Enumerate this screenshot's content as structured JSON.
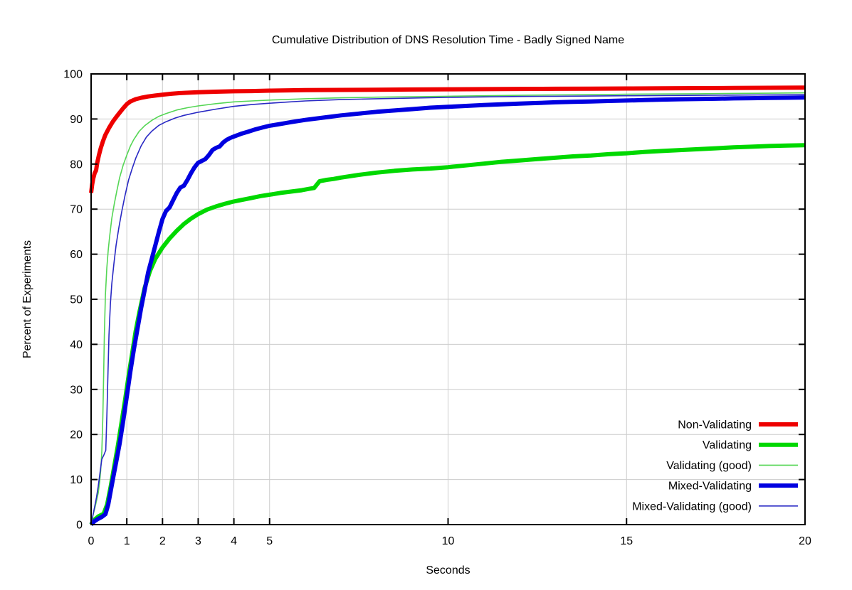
{
  "chart_data": {
    "type": "line",
    "title": "Cumulative Distribution of DNS Resolution Time - Badly Signed Name",
    "xlabel": "Seconds",
    "ylabel": "Percent of Experiments",
    "xlim": [
      0,
      20
    ],
    "ylim": [
      0,
      100
    ],
    "xticks": [
      0,
      1,
      2,
      3,
      4,
      5,
      10,
      15,
      20
    ],
    "yticks": [
      0,
      10,
      20,
      30,
      40,
      50,
      60,
      70,
      80,
      90,
      100
    ],
    "grid": true,
    "grid_color": "#cccccc",
    "frame_color": "#000000",
    "background": "#ffffff",
    "legend_position": "inside-bottom-right",
    "series": [
      {
        "name": "Validating",
        "color": "#00d800",
        "width": 6,
        "points": [
          [
            0,
            0
          ],
          [
            0.08,
            1
          ],
          [
            0.2,
            1.8
          ],
          [
            0.35,
            2.4
          ],
          [
            0.45,
            4.5
          ],
          [
            0.55,
            8.5
          ],
          [
            0.65,
            13
          ],
          [
            0.75,
            17.5
          ],
          [
            0.85,
            22.5
          ],
          [
            0.95,
            27.5
          ],
          [
            1.05,
            33
          ],
          [
            1.15,
            38
          ],
          [
            1.25,
            43
          ],
          [
            1.35,
            47
          ],
          [
            1.5,
            52.5
          ],
          [
            1.65,
            56.3
          ],
          [
            1.8,
            59
          ],
          [
            2,
            61.5
          ],
          [
            2.2,
            63.5
          ],
          [
            2.4,
            65.2
          ],
          [
            2.6,
            66.7
          ],
          [
            2.8,
            67.9
          ],
          [
            3,
            68.9
          ],
          [
            3.25,
            69.9
          ],
          [
            3.5,
            70.6
          ],
          [
            3.75,
            71.2
          ],
          [
            4,
            71.7
          ],
          [
            4.25,
            72.1
          ],
          [
            4.5,
            72.5
          ],
          [
            4.75,
            72.9
          ],
          [
            5,
            73.2
          ],
          [
            5.3,
            73.6
          ],
          [
            5.6,
            73.9
          ],
          [
            5.9,
            74.2
          ],
          [
            6.1,
            74.5
          ],
          [
            6.25,
            74.7
          ],
          [
            6.4,
            76.2
          ],
          [
            6.6,
            76.5
          ],
          [
            6.8,
            76.7
          ],
          [
            7,
            77
          ],
          [
            7.5,
            77.6
          ],
          [
            8,
            78.1
          ],
          [
            8.5,
            78.5
          ],
          [
            9,
            78.8
          ],
          [
            9.5,
            79
          ],
          [
            10,
            79.3
          ],
          [
            10.5,
            79.7
          ],
          [
            11,
            80.1
          ],
          [
            11.5,
            80.5
          ],
          [
            12,
            80.8
          ],
          [
            12.5,
            81.1
          ],
          [
            13,
            81.4
          ],
          [
            13.5,
            81.7
          ],
          [
            14,
            81.9
          ],
          [
            14.5,
            82.2
          ],
          [
            15,
            82.4
          ],
          [
            15.5,
            82.7
          ],
          [
            16,
            82.9
          ],
          [
            16.5,
            83.1
          ],
          [
            17,
            83.3
          ],
          [
            17.5,
            83.5
          ],
          [
            18,
            83.7
          ],
          [
            18.5,
            83.85
          ],
          [
            19,
            84
          ],
          [
            19.5,
            84.1
          ],
          [
            20,
            84.2
          ]
        ]
      },
      {
        "name": "Validating (good)",
        "color": "#55d655",
        "width": 1.6,
        "points": [
          [
            0,
            0
          ],
          [
            0.05,
            2
          ],
          [
            0.1,
            3.5
          ],
          [
            0.15,
            5.2
          ],
          [
            0.2,
            7
          ],
          [
            0.24,
            9.5
          ],
          [
            0.27,
            12
          ],
          [
            0.3,
            16
          ],
          [
            0.33,
            24
          ],
          [
            0.35,
            33
          ],
          [
            0.37,
            42
          ],
          [
            0.4,
            51
          ],
          [
            0.44,
            57
          ],
          [
            0.48,
            61
          ],
          [
            0.52,
            64
          ],
          [
            0.58,
            68
          ],
          [
            0.65,
            71.2
          ],
          [
            0.72,
            74
          ],
          [
            0.8,
            77
          ],
          [
            0.9,
            79.8
          ],
          [
            1,
            82
          ],
          [
            1.1,
            84
          ],
          [
            1.2,
            85.5
          ],
          [
            1.35,
            87.3
          ],
          [
            1.5,
            88.5
          ],
          [
            1.7,
            89.7
          ],
          [
            1.9,
            90.6
          ],
          [
            2.1,
            91.2
          ],
          [
            2.4,
            92
          ],
          [
            2.7,
            92.5
          ],
          [
            3,
            92.9
          ],
          [
            3.5,
            93.4
          ],
          [
            4,
            93.8
          ],
          [
            4.5,
            94
          ],
          [
            5,
            94.2
          ],
          [
            6,
            94.5
          ],
          [
            7,
            94.7
          ],
          [
            8,
            94.85
          ],
          [
            9,
            94.95
          ],
          [
            10,
            95.05
          ],
          [
            11,
            95.15
          ],
          [
            12,
            95.25
          ],
          [
            13,
            95.35
          ],
          [
            14,
            95.4
          ],
          [
            15,
            95.5
          ],
          [
            16,
            95.55
          ],
          [
            17,
            95.6
          ],
          [
            18,
            95.68
          ],
          [
            19,
            95.73
          ],
          [
            20,
            95.8
          ]
        ]
      },
      {
        "name": "Mixed-Validating",
        "color": "#0000e0",
        "width": 6,
        "points": [
          [
            0,
            0
          ],
          [
            0.1,
            0.8
          ],
          [
            0.2,
            1.3
          ],
          [
            0.3,
            1.7
          ],
          [
            0.4,
            2.3
          ],
          [
            0.48,
            4.5
          ],
          [
            0.55,
            7.5
          ],
          [
            0.62,
            10.5
          ],
          [
            0.7,
            13.8
          ],
          [
            0.8,
            18
          ],
          [
            0.9,
            23
          ],
          [
            1,
            28.5
          ],
          [
            1.1,
            34
          ],
          [
            1.2,
            39
          ],
          [
            1.3,
            43.5
          ],
          [
            1.4,
            48
          ],
          [
            1.5,
            52
          ],
          [
            1.6,
            56
          ],
          [
            1.7,
            59
          ],
          [
            1.8,
            62
          ],
          [
            1.9,
            65
          ],
          [
            2,
            67.8
          ],
          [
            2.1,
            69.6
          ],
          [
            2.2,
            70.4
          ],
          [
            2.3,
            72
          ],
          [
            2.4,
            73.6
          ],
          [
            2.5,
            74.8
          ],
          [
            2.6,
            75.2
          ],
          [
            2.7,
            76.5
          ],
          [
            2.8,
            78
          ],
          [
            2.9,
            79.3
          ],
          [
            3,
            80.3
          ],
          [
            3.1,
            80.7
          ],
          [
            3.2,
            81.1
          ],
          [
            3.3,
            82
          ],
          [
            3.4,
            83.1
          ],
          [
            3.5,
            83.6
          ],
          [
            3.6,
            83.9
          ],
          [
            3.7,
            84.8
          ],
          [
            3.8,
            85.4
          ],
          [
            3.9,
            85.8
          ],
          [
            4,
            86.1
          ],
          [
            4.2,
            86.7
          ],
          [
            4.4,
            87.2
          ],
          [
            4.6,
            87.7
          ],
          [
            4.8,
            88.1
          ],
          [
            5,
            88.5
          ],
          [
            5.3,
            88.9
          ],
          [
            5.6,
            89.3
          ],
          [
            6,
            89.8
          ],
          [
            6.5,
            90.3
          ],
          [
            7,
            90.8
          ],
          [
            7.5,
            91.2
          ],
          [
            8,
            91.6
          ],
          [
            8.5,
            91.9
          ],
          [
            9,
            92.2
          ],
          [
            9.5,
            92.5
          ],
          [
            10,
            92.7
          ],
          [
            10.5,
            92.9
          ],
          [
            11,
            93.1
          ],
          [
            11.5,
            93.25
          ],
          [
            12,
            93.4
          ],
          [
            12.5,
            93.55
          ],
          [
            13,
            93.7
          ],
          [
            13.5,
            93.8
          ],
          [
            14,
            93.9
          ],
          [
            14.5,
            94
          ],
          [
            15,
            94.1
          ],
          [
            15.5,
            94.2
          ],
          [
            16,
            94.3
          ],
          [
            16.5,
            94.38
          ],
          [
            17,
            94.45
          ],
          [
            17.5,
            94.5
          ],
          [
            18,
            94.57
          ],
          [
            18.5,
            94.62
          ],
          [
            19,
            94.67
          ],
          [
            19.5,
            94.72
          ],
          [
            20,
            94.78
          ]
        ]
      },
      {
        "name": "Mixed-Validating (good)",
        "color": "#2929c4",
        "width": 1.6,
        "points": [
          [
            0,
            0
          ],
          [
            0.05,
            2
          ],
          [
            0.1,
            4
          ],
          [
            0.15,
            6
          ],
          [
            0.2,
            8.5
          ],
          [
            0.25,
            11.5
          ],
          [
            0.3,
            14.5
          ],
          [
            0.36,
            15.5
          ],
          [
            0.41,
            16.5
          ],
          [
            0.44,
            24
          ],
          [
            0.47,
            33
          ],
          [
            0.5,
            42
          ],
          [
            0.54,
            49
          ],
          [
            0.58,
            53.5
          ],
          [
            0.64,
            58
          ],
          [
            0.7,
            62
          ],
          [
            0.78,
            66
          ],
          [
            0.86,
            69.5
          ],
          [
            0.95,
            73
          ],
          [
            1.05,
            76.5
          ],
          [
            1.15,
            79
          ],
          [
            1.25,
            81.3
          ],
          [
            1.4,
            84
          ],
          [
            1.55,
            86
          ],
          [
            1.7,
            87.3
          ],
          [
            1.9,
            88.6
          ],
          [
            2.1,
            89.4
          ],
          [
            2.35,
            90.2
          ],
          [
            2.6,
            90.8
          ],
          [
            3,
            91.5
          ],
          [
            3.5,
            92.2
          ],
          [
            4,
            92.8
          ],
          [
            4.5,
            93.2
          ],
          [
            5,
            93.5
          ],
          [
            5.5,
            93.75
          ],
          [
            6,
            94
          ],
          [
            7,
            94.3
          ],
          [
            8,
            94.5
          ],
          [
            9,
            94.65
          ],
          [
            10,
            94.8
          ],
          [
            11,
            94.9
          ],
          [
            12,
            95
          ],
          [
            13,
            95.05
          ],
          [
            14,
            95.1
          ],
          [
            15,
            95.15
          ],
          [
            16,
            95.2
          ],
          [
            17,
            95.25
          ],
          [
            18,
            95.3
          ],
          [
            19,
            95.35
          ],
          [
            20,
            95.4
          ]
        ]
      },
      {
        "name": "Non-Validating",
        "color": "#ee0000",
        "width": 6,
        "points": [
          [
            0,
            73.6
          ],
          [
            0.03,
            75.5
          ],
          [
            0.06,
            76.8
          ],
          [
            0.1,
            78
          ],
          [
            0.14,
            78.6
          ],
          [
            0.17,
            80.2
          ],
          [
            0.22,
            82
          ],
          [
            0.27,
            83.5
          ],
          [
            0.33,
            85
          ],
          [
            0.4,
            86.5
          ],
          [
            0.5,
            88
          ],
          [
            0.6,
            89.3
          ],
          [
            0.7,
            90.4
          ],
          [
            0.8,
            91.4
          ],
          [
            0.9,
            92.4
          ],
          [
            1,
            93.3
          ],
          [
            1.1,
            93.9
          ],
          [
            1.25,
            94.4
          ],
          [
            1.4,
            94.7
          ],
          [
            1.6,
            95
          ],
          [
            1.8,
            95.2
          ],
          [
            2,
            95.4
          ],
          [
            2.25,
            95.6
          ],
          [
            2.5,
            95.75
          ],
          [
            3,
            95.95
          ],
          [
            3.5,
            96.05
          ],
          [
            4,
            96.15
          ],
          [
            4.5,
            96.2
          ],
          [
            5,
            96.3
          ],
          [
            6,
            96.4
          ],
          [
            7,
            96.45
          ],
          [
            8,
            96.5
          ],
          [
            9,
            96.55
          ],
          [
            10,
            96.6
          ],
          [
            11,
            96.62
          ],
          [
            12,
            96.67
          ],
          [
            13,
            96.7
          ],
          [
            14,
            96.73
          ],
          [
            15,
            96.77
          ],
          [
            16,
            96.8
          ],
          [
            17,
            96.84
          ],
          [
            18,
            96.88
          ],
          [
            19,
            96.93
          ],
          [
            20,
            96.97
          ]
        ]
      }
    ],
    "legend": {
      "order": [
        "Non-Validating",
        "Validating",
        "Validating (good)",
        "Mixed-Validating",
        "Mixed-Validating (good)"
      ]
    }
  }
}
